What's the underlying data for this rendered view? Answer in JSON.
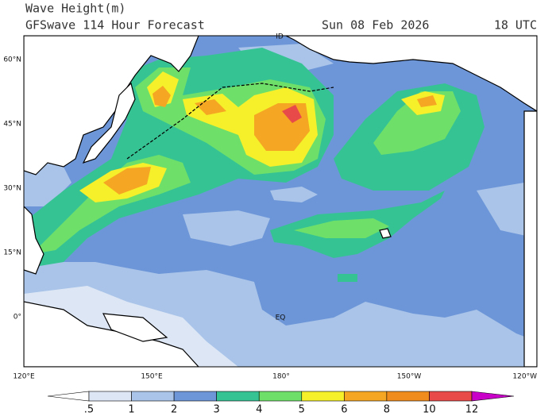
{
  "header": {
    "title": "Wave Height(m)",
    "subtitle": "GFSwave 114 Hour Forecast",
    "date": "Sun 08 Feb 2026",
    "time": "18 UTC"
  },
  "axes": {
    "lat_labels": [
      "60°N",
      "45°N",
      "30°N",
      "15°N",
      "0°"
    ],
    "lon_labels": [
      "120°E",
      "150°E",
      "180°",
      "150°W",
      "120°W"
    ]
  },
  "map_labels": [
    "ID",
    "EQ"
  ],
  "colorbar": {
    "levels": [
      {
        "value": 0.5,
        "label": ".5"
      },
      1,
      2,
      3,
      4,
      5,
      6,
      8,
      10,
      12
    ],
    "colors": [
      "#ffffff",
      "#dce6f5",
      "#a9c4e8",
      "#6d96d8",
      "#36c394",
      "#6ee06a",
      "#f5f02a",
      "#f5a623",
      "#f08c1e",
      "#e84a4a",
      "#c800c8"
    ]
  }
}
